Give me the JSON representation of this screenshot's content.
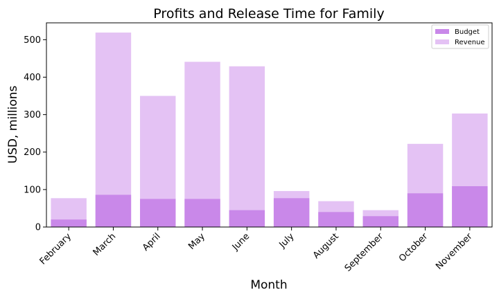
{
  "chart_data": {
    "type": "bar",
    "title": "Profits and Release Time for Family",
    "xlabel": "Month",
    "ylabel": "USD, millions",
    "categories": [
      "February",
      "March",
      "April",
      "May",
      "June",
      "July",
      "August",
      "September",
      "October",
      "November"
    ],
    "series": [
      {
        "name": "Budget",
        "color": "#c988e9",
        "values": [
          20,
          86,
          75,
          75,
          45,
          77,
          40,
          29,
          90,
          109
        ]
      },
      {
        "name": "Revenue",
        "color": "#e4c2f4",
        "values": [
          77,
          519,
          350,
          441,
          429,
          96,
          69,
          45,
          222,
          303
        ]
      }
    ],
    "ylim": [
      0,
      545
    ],
    "yticks": [
      0,
      100,
      200,
      300,
      400,
      500
    ],
    "legend": "top-right",
    "grid": false
  }
}
